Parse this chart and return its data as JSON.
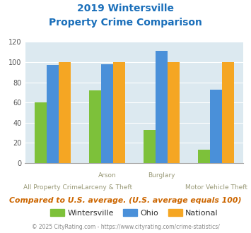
{
  "title_line1": "2019 Wintersville",
  "title_line2": "Property Crime Comparison",
  "wintersville": [
    60,
    72,
    33,
    13
  ],
  "ohio": [
    97,
    98,
    111,
    73
  ],
  "national": [
    100,
    100,
    100,
    100
  ],
  "bar_colors": {
    "wintersville": "#7dc13a",
    "ohio": "#4a90d9",
    "national": "#f5a623"
  },
  "ylim": [
    0,
    120
  ],
  "yticks": [
    0,
    20,
    40,
    60,
    80,
    100,
    120
  ],
  "title_color": "#1a6fba",
  "background_color": "#dce9f0",
  "note": "Compared to U.S. average. (U.S. average equals 100)",
  "footer": "© 2025 CityRating.com - https://www.cityrating.com/crime-statistics/",
  "note_color": "#cc6600",
  "footer_color": "#888888",
  "legend_labels": [
    "Wintersville",
    "Ohio",
    "National"
  ],
  "top_labels": [
    "",
    "Arson",
    "Burglary",
    ""
  ],
  "bot_labels": [
    "All Property Crime",
    "Larceny & Theft",
    "",
    "Motor Vehicle Theft"
  ],
  "label_color": "#999977"
}
